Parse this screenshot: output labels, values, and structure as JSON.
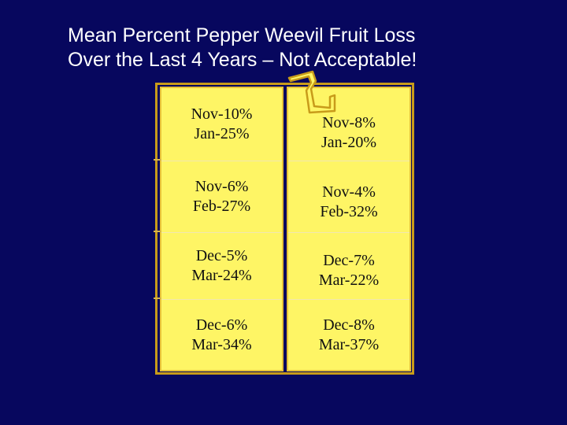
{
  "title": {
    "line1": "Mean Percent Pepper Weevil Fruit Loss",
    "line2": "Over the Last 4 Years – Not Acceptable!"
  },
  "table": {
    "columns": [
      {
        "cells": [
          {
            "line1": "Nov-10%",
            "line2": "Jan-25%"
          },
          {
            "line1": "Nov-6%",
            "line2": "Feb-27%"
          },
          {
            "line1": "Dec-5%",
            "line2": "Mar-24%"
          },
          {
            "line1": "Dec-6%",
            "line2": "Mar-34%"
          }
        ]
      },
      {
        "cells": [
          {
            "line1": "Nov-8%",
            "line2": "Jan-20%"
          },
          {
            "line1": "Nov-4%",
            "line2": "Feb-32%"
          },
          {
            "line1": "Dec-7%",
            "line2": "Mar-22%"
          },
          {
            "line1": "Dec-8%",
            "line2": "Mar-37%"
          }
        ]
      }
    ]
  },
  "colors": {
    "background": "#07075e",
    "cell_fill": "#fef565",
    "border": "#c89b1a",
    "title_text": "#ffffff"
  }
}
